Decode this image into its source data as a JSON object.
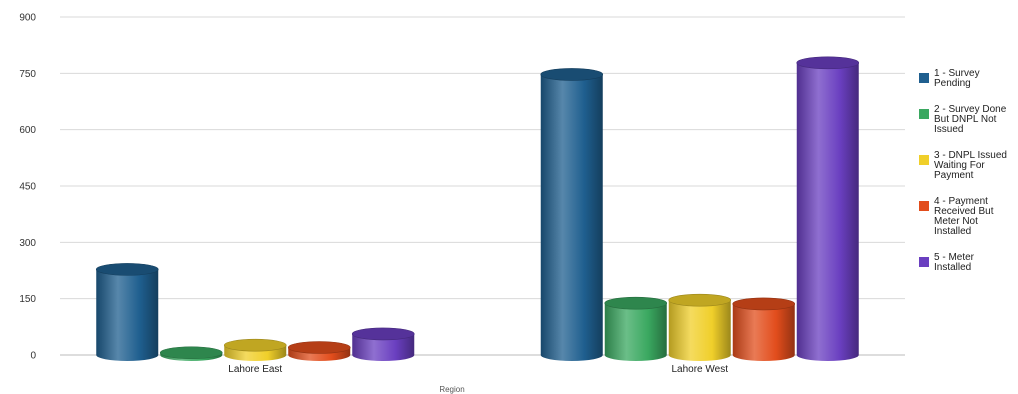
{
  "chart_data": {
    "type": "bar",
    "title": "",
    "xlabel": "Region",
    "ylabel": "",
    "categories": [
      "Lahore East",
      "Lahore West"
    ],
    "ylim": [
      0,
      900
    ],
    "yticks": [
      0,
      150,
      300,
      450,
      600,
      750,
      900
    ],
    "grid": true,
    "legend_position": "right",
    "series": [
      {
        "name": "1 - Survey Pending",
        "legend_lines": [
          "1 - Survey",
          "Pending"
        ],
        "color": "#1f5f8f",
        "values": [
          228,
          747
        ]
      },
      {
        "name": "2 - Survey Done But DNPL Not Issued",
        "legend_lines": [
          "2 - Survey Done",
          "But DNPL Not",
          "Issued"
        ],
        "color": "#3aa860",
        "values": [
          6,
          138
        ]
      },
      {
        "name": "3 - DNPL Issued Waiting For Payment",
        "legend_lines": [
          "3 - DNPL Issued",
          "Waiting For",
          "Payment"
        ],
        "color": "#f0cf2a",
        "values": [
          26,
          146
        ]
      },
      {
        "name": "4 - Payment Received But Meter Not Installed",
        "legend_lines": [
          "4 - Payment",
          "Received But",
          "Meter Not",
          "Installed"
        ],
        "color": "#e24d1c",
        "values": [
          20,
          136
        ]
      },
      {
        "name": "5 - Meter Installed",
        "legend_lines": [
          "5 - Meter",
          "Installed"
        ],
        "color": "#6a3fc0",
        "values": [
          56,
          778
        ]
      }
    ]
  }
}
